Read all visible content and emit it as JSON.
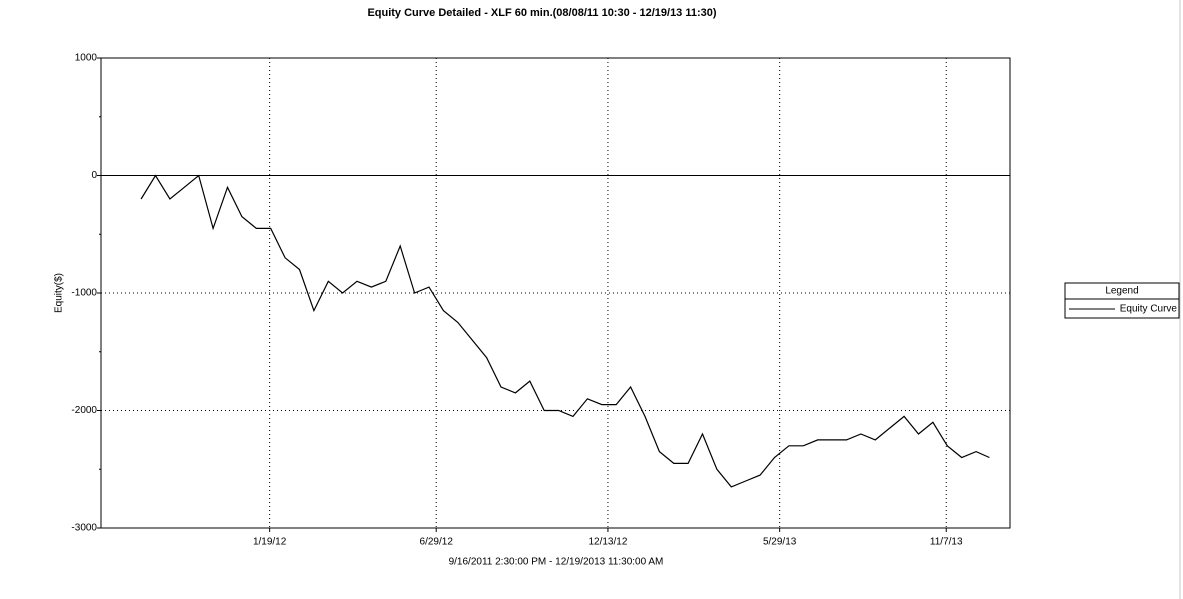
{
  "chart_data": {
    "type": "line",
    "title": "Equity Curve Detailed - XLF 60 min.(08/08/11 10:30 - 12/19/13 11:30)",
    "x_label": "9/16/2011 2:30:00 PM - 12/19/2013 11:30:00 AM",
    "y_label": "Equity($)",
    "legend_title": "Legend",
    "legend": "right",
    "grid": true,
    "x": [
      "2011-09-16",
      "2011-09-30",
      "2011-10-14",
      "2011-10-28",
      "2011-11-11",
      "2011-11-25",
      "2011-12-09",
      "2011-12-23",
      "2012-01-06",
      "2012-01-20",
      "2012-02-03",
      "2012-02-17",
      "2012-03-02",
      "2012-03-16",
      "2012-03-30",
      "2012-04-13",
      "2012-04-27",
      "2012-05-11",
      "2012-05-25",
      "2012-06-08",
      "2012-06-22",
      "2012-07-06",
      "2012-07-20",
      "2012-08-03",
      "2012-08-17",
      "2012-08-31",
      "2012-09-14",
      "2012-09-28",
      "2012-10-12",
      "2012-10-26",
      "2012-11-09",
      "2012-11-23",
      "2012-12-07",
      "2012-12-21",
      "2013-01-04",
      "2013-01-18",
      "2013-02-01",
      "2013-02-15",
      "2013-03-01",
      "2013-03-15",
      "2013-03-29",
      "2013-04-12",
      "2013-04-26",
      "2013-05-10",
      "2013-05-24",
      "2013-06-07",
      "2013-06-21",
      "2013-07-05",
      "2013-07-19",
      "2013-08-02",
      "2013-08-16",
      "2013-08-30",
      "2013-09-13",
      "2013-09-27",
      "2013-10-11",
      "2013-10-25",
      "2013-11-08",
      "2013-11-22",
      "2013-12-06",
      "2013-12-19"
    ],
    "series": [
      {
        "name": "Equity Curve",
        "color": "#000000",
        "values": [
          -200,
          0,
          -200,
          -100,
          0,
          -450,
          -100,
          -350,
          -450,
          -450,
          -700,
          -800,
          -1150,
          -900,
          -1000,
          -900,
          -950,
          -900,
          -600,
          -1000,
          -950,
          -1150,
          -1250,
          -1400,
          -1550,
          -1800,
          -1850,
          -1750,
          -2000,
          -2000,
          -2050,
          -1900,
          -1950,
          -1950,
          -1800,
          -2050,
          -2350,
          -2450,
          -2450,
          -2200,
          -2500,
          -2650,
          -2600,
          -2550,
          -2400,
          -2300,
          -2300,
          -2250,
          -2250,
          -2250,
          -2200,
          -2250,
          -2150,
          -2050,
          -2200,
          -2100,
          -2300,
          -2400,
          -2350,
          -2400
        ]
      }
    ],
    "xlim": [
      "2011-08-08",
      "2014-01-08"
    ],
    "xticks": [
      {
        "value": "2012-01-19",
        "label": "1/19/12"
      },
      {
        "value": "2012-06-29",
        "label": "6/29/12"
      },
      {
        "value": "2012-12-13",
        "label": "12/13/12"
      },
      {
        "value": "2013-05-29",
        "label": "5/29/13"
      },
      {
        "value": "2013-11-07",
        "label": "11/7/13"
      }
    ],
    "ylim": [
      -3000,
      1000
    ],
    "yticks": [
      1000,
      0,
      -1000,
      -2000,
      -3000
    ]
  }
}
